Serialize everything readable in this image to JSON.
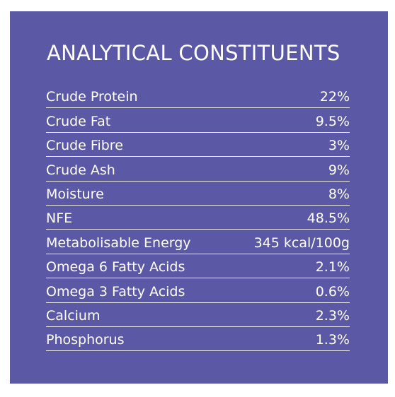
{
  "title": "ANALYTICAL CONSTITUENTS",
  "colors": {
    "panel_background": "#5b58a5",
    "text": "#ffffff"
  },
  "rows": [
    {
      "label": "Crude Protein",
      "value": "22%"
    },
    {
      "label": "Crude Fat",
      "value": "9.5%"
    },
    {
      "label": "Crude Fibre",
      "value": "3%"
    },
    {
      "label": "Crude Ash",
      "value": "9%"
    },
    {
      "label": "Moisture",
      "value": "8%"
    },
    {
      "label": "NFE",
      "value": "48.5%"
    },
    {
      "label": "Metabolisable Energy",
      "value": "345 kcal/100g"
    },
    {
      "label": "Omega 6 Fatty Acids",
      "value": "2.1%"
    },
    {
      "label": "Omega 3 Fatty Acids",
      "value": "0.6%"
    },
    {
      "label": "Calcium",
      "value": "2.3%"
    },
    {
      "label": "Phosphorus",
      "value": "1.3%"
    }
  ]
}
